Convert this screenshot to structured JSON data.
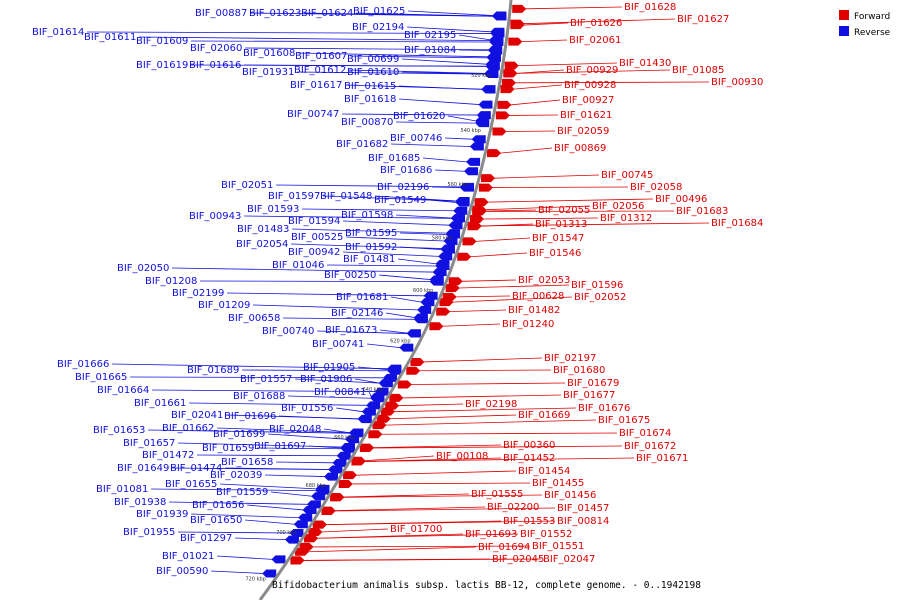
{
  "caption": "Bifidobacterium animalis subsp. lactis BB-12, complete genome. - 0..1942198",
  "legend": {
    "forward_label": "Forward",
    "reverse_label": "Reverse",
    "forward_color": "#e00000",
    "reverse_color": "#1010e0"
  },
  "ticks": [
    "520 kbp",
    "540 kbp",
    "560 kbp",
    "580 kbp",
    "600 kbp",
    "620 kbp",
    "640 kbp",
    "660 kbp",
    "680 kbp",
    "700 kbp",
    "720 kbp"
  ],
  "reverse_labels": [
    "BIF_00887",
    "BIF_01623",
    "BIF_01624",
    "BIF_01625",
    "BIF_02194",
    "BIF_02195",
    "BIF_01614",
    "BIF_01611",
    "BIF_01609",
    "BIF_02060",
    "BIF_01608",
    "BIF_01607",
    "BIF_01084",
    "BIF_00699",
    "BIF_01619",
    "BIF_01616",
    "BIF_01931",
    "BIF_01612",
    "BIF_01610",
    "BIF_01617",
    "BIF_01615",
    "BIF_01618",
    "BIF_00747",
    "BIF_00870",
    "BIF_01620",
    "BIF_00746",
    "BIF_01682",
    "BIF_01685",
    "BIF_01686",
    "BIF_02051",
    "BIF_02196",
    "BIF_01597",
    "BIF_01548",
    "BIF_01549",
    "BIF_01593",
    "BIF_00943",
    "BIF_01594",
    "BIF_01598",
    "BIF_01483",
    "BIF_01595",
    "BIF_00525",
    "BIF_02054",
    "BIF_00942",
    "BIF_01592",
    "BIF_01481",
    "BIF_01046",
    "BIF_00250",
    "BIF_02050",
    "BIF_01208",
    "BIF_02199",
    "BIF_01681",
    "BIF_01209",
    "BIF_02146",
    "BIF_00658",
    "BIF_00740",
    "BIF_01673",
    "BIF_00741",
    "BIF_01666",
    "BIF_01689",
    "BIF_01905",
    "BIF_01665",
    "BIF_01557",
    "BIF_01906",
    "BIF_01664",
    "BIF_01688",
    "BIF_00841",
    "BIF_01661",
    "BIF_01556",
    "BIF_02041",
    "BIF_01696",
    "BIF_01653",
    "BIF_01662",
    "BIF_01699",
    "BIF_02048",
    "BIF_01657",
    "BIF_01659",
    "BIF_01697",
    "BIF_01472",
    "BIF_01658",
    "BIF_01649",
    "BIF_01474",
    "BIF_02039",
    "BIF_01655",
    "BIF_01081",
    "BIF_01559",
    "BIF_01938",
    "BIF_01656",
    "BIF_01939",
    "BIF_01650",
    "BIF_01955",
    "BIF_01297",
    "BIF_01021",
    "BIF_00590"
  ],
  "forward_labels": [
    "BIF_01628",
    "BIF_01626",
    "BIF_01627",
    "BIF_02061",
    "BIF_01430",
    "BIF_00929",
    "BIF_01085",
    "BIF_00928",
    "BIF_00930",
    "BIF_00927",
    "BIF_01621",
    "BIF_02059",
    "BIF_00869",
    "BIF_00745",
    "BIF_02058",
    "BIF_00496",
    "BIF_02056",
    "BIF_01683",
    "BIF_02055",
    "BIF_01312",
    "BIF_01684",
    "BIF_01313",
    "BIF_01547",
    "BIF_01546",
    "BIF_02053",
    "BIF_01596",
    "BIF_00628",
    "BIF_02052",
    "BIF_01482",
    "BIF_01240",
    "BIF_02197",
    "BIF_01680",
    "BIF_01679",
    "BIF_01677",
    "BIF_02198",
    "BIF_01676",
    "BIF_01669",
    "BIF_01675",
    "BIF_01674",
    "BIF_01672",
    "BIF_00360",
    "BIF_01671",
    "BIF_00108",
    "BIF_01452",
    "BIF_01454",
    "BIF_01455",
    "BIF_01555",
    "BIF_01456",
    "BIF_02200",
    "BIF_01457",
    "BIF_01553",
    "BIF_00814",
    "BIF_01700",
    "BIF_01693",
    "BIF_01552",
    "BIF_01694",
    "BIF_01551",
    "BIF_02045",
    "BIF_02047"
  ]
}
